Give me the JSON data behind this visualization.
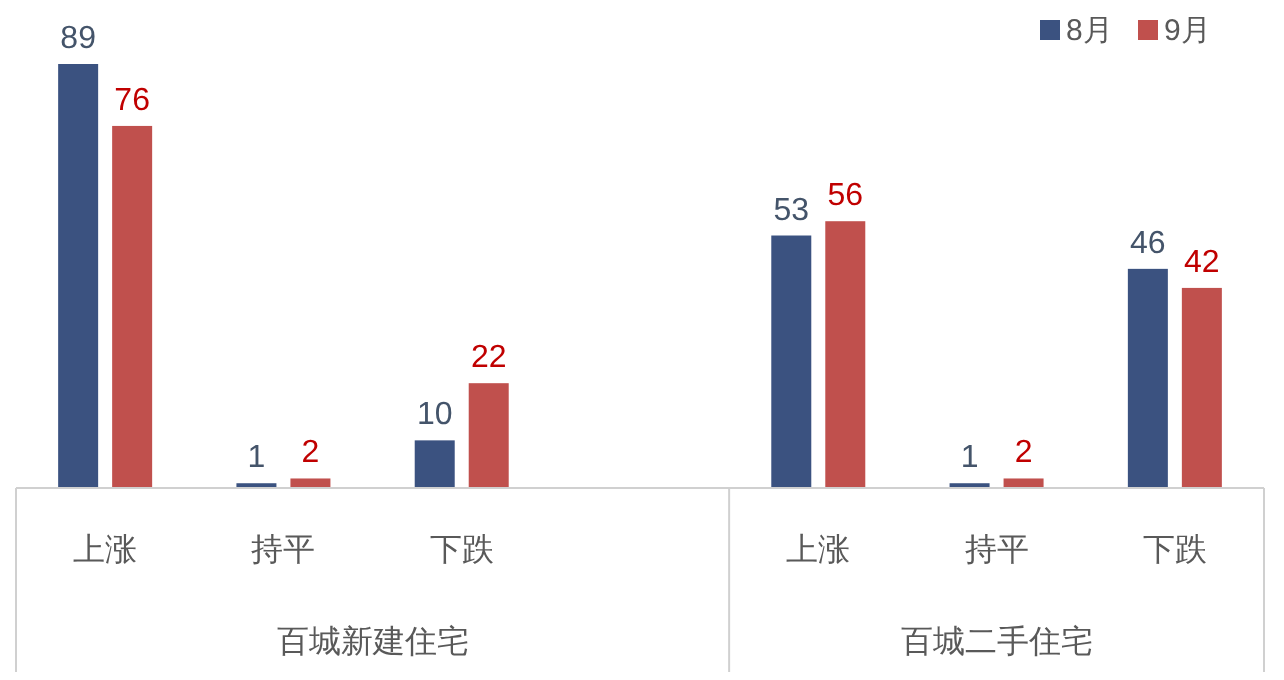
{
  "chart_data": {
    "type": "bar",
    "categories": [
      "上涨",
      "持平",
      "下跌",
      null,
      "上涨",
      "持平",
      "下跌"
    ],
    "series": [
      {
        "name": "8月",
        "color": "#3b5280",
        "values": [
          89,
          1,
          10,
          null,
          53,
          1,
          46
        ]
      },
      {
        "name": "9月",
        "color": "#c0504d",
        "values": [
          76,
          2,
          22,
          null,
          56,
          2,
          42
        ]
      }
    ],
    "annotations": [
      "百城新建住宅",
      "百城二手住宅"
    ],
    "data_labels": true,
    "legend": "top right",
    "grid": false
  }
}
